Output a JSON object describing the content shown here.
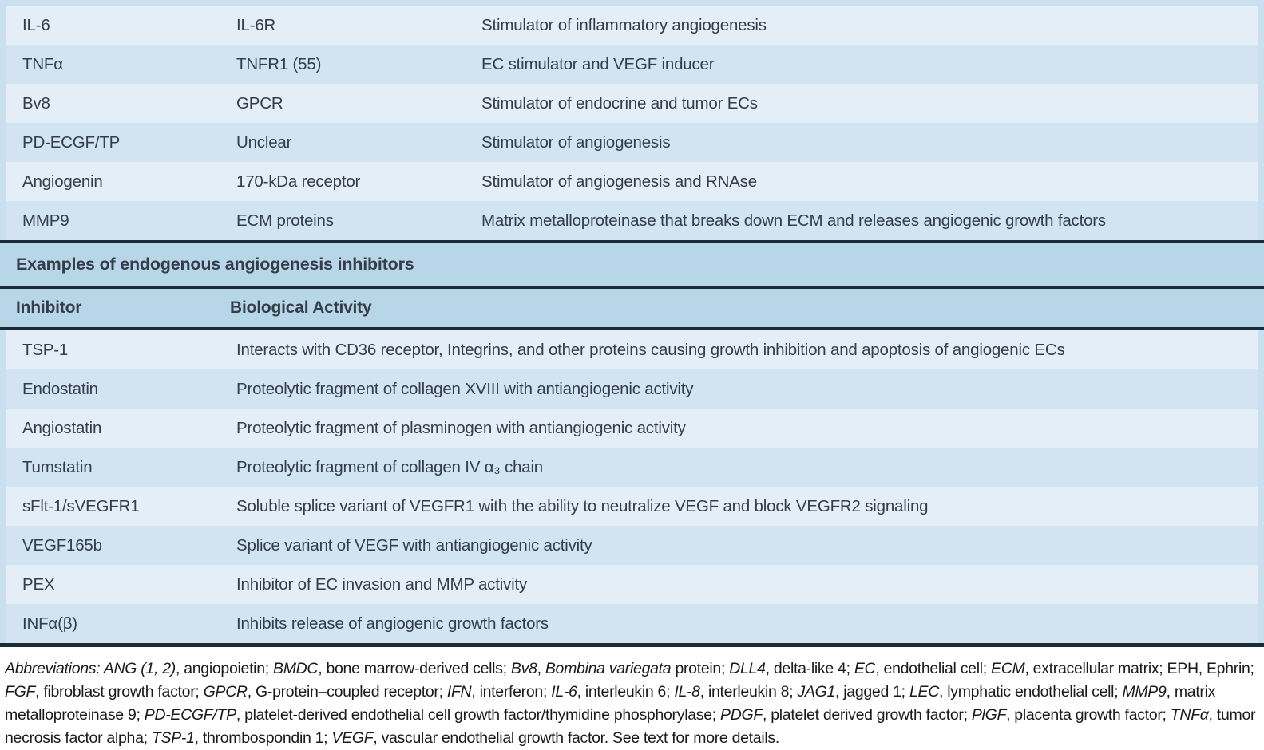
{
  "table": {
    "stimulators": {
      "rows": [
        {
          "factor": "IL-6",
          "receptor": "IL-6R",
          "activity": "Stimulator of inflammatory angiogenesis"
        },
        {
          "factor": "TNFα",
          "receptor": "TNFR1 (55)",
          "activity": "EC stimulator and VEGF inducer"
        },
        {
          "factor": "Bv8",
          "receptor": "GPCR",
          "activity": "Stimulator of endocrine and tumor ECs"
        },
        {
          "factor": "PD-ECGF/TP",
          "receptor": "Unclear",
          "activity": "Stimulator of angiogenesis"
        },
        {
          "factor": "Angiogenin",
          "receptor": "170-kDa receptor",
          "activity": "Stimulator of angiogenesis and RNAse"
        },
        {
          "factor": "MMP9",
          "receptor": "ECM proteins",
          "activity": "Matrix metalloproteinase that breaks down ECM and releases angiogenic growth factors"
        }
      ]
    },
    "section_header": "Examples of endogenous angiogenesis inhibitors",
    "inhibitors": {
      "col_headers": {
        "inhibitor": "Inhibitor",
        "activity": "Biological Activity"
      },
      "rows": [
        {
          "inhibitor": "TSP-1",
          "activity": "Interacts with CD36 receptor, Integrins, and other proteins causing growth inhibition and apoptosis of angiogenic ECs"
        },
        {
          "inhibitor": "Endostatin",
          "activity": "Proteolytic fragment of collagen XVIII with antiangiogenic activity"
        },
        {
          "inhibitor": "Angiostatin",
          "activity": "Proteolytic fragment of plasminogen with antiangiogenic activity"
        },
        {
          "inhibitor": "Tumstatin",
          "activity": "Proteolytic fragment of collagen IV α₃ chain"
        },
        {
          "inhibitor": "sFlt-1/sVEGFR1",
          "activity": "Soluble splice variant of VEGFR1 with the ability to neutralize VEGF and block VEGFR2 signaling"
        },
        {
          "inhibitor": "VEGF165b",
          "activity": "Splice variant of VEGF with antiangiogenic activity"
        },
        {
          "inhibitor": "PEX",
          "activity": "Inhibitor of EC invasion and MMP activity"
        },
        {
          "inhibitor": "INFα(β)",
          "activity": "Inhibits release of angiogenic growth factors"
        }
      ]
    }
  },
  "footnote": {
    "segments": [
      {
        "text": "Abbreviations: ",
        "italic": true
      },
      {
        "text": "ANG (1, 2)",
        "italic": true
      },
      {
        "text": ", angiopoietin; ",
        "italic": false
      },
      {
        "text": "BMDC",
        "italic": true
      },
      {
        "text": ", bone marrow-derived cells; ",
        "italic": false
      },
      {
        "text": "Bv8",
        "italic": true
      },
      {
        "text": ", ",
        "italic": false
      },
      {
        "text": "Bombina variegata",
        "italic": true
      },
      {
        "text": " protein; ",
        "italic": false
      },
      {
        "text": "DLL4",
        "italic": true
      },
      {
        "text": ", delta-like 4; ",
        "italic": false
      },
      {
        "text": "EC",
        "italic": true
      },
      {
        "text": ", endothelial cell; ",
        "italic": false
      },
      {
        "text": "ECM",
        "italic": true
      },
      {
        "text": ", extracellular matrix; EPH, Ephrin; ",
        "italic": false
      },
      {
        "text": "FGF",
        "italic": true
      },
      {
        "text": ", fibroblast growth factor; ",
        "italic": false
      },
      {
        "text": "GPCR",
        "italic": true
      },
      {
        "text": ", G-protein–coupled receptor; ",
        "italic": false
      },
      {
        "text": "IFN",
        "italic": true
      },
      {
        "text": ", interferon; ",
        "italic": false
      },
      {
        "text": "IL-6",
        "italic": true
      },
      {
        "text": ", interleukin 6; ",
        "italic": false
      },
      {
        "text": "IL-8",
        "italic": true
      },
      {
        "text": ", interleukin 8; ",
        "italic": false
      },
      {
        "text": "JAG1",
        "italic": true
      },
      {
        "text": ", jagged 1; ",
        "italic": false
      },
      {
        "text": "LEC",
        "italic": true
      },
      {
        "text": ", lymphatic endothelial cell; ",
        "italic": false
      },
      {
        "text": "MMP9",
        "italic": true
      },
      {
        "text": ", matrix metalloproteinase 9; ",
        "italic": false
      },
      {
        "text": "PD-ECGF/TP",
        "italic": true
      },
      {
        "text": ", platelet-derived endothelial cell growth factor/thymidine phosphorylase; ",
        "italic": false
      },
      {
        "text": "PDGF",
        "italic": true
      },
      {
        "text": ", platelet derived growth factor; ",
        "italic": false
      },
      {
        "text": "PlGF",
        "italic": true
      },
      {
        "text": ", placenta growth factor; ",
        "italic": false
      },
      {
        "text": "TNFα",
        "italic": true
      },
      {
        "text": ", tumor necrosis factor alpha; ",
        "italic": false
      },
      {
        "text": "TSP-1",
        "italic": true
      },
      {
        "text": ", thrombospondin 1; ",
        "italic": false
      },
      {
        "text": "VEGF",
        "italic": true
      },
      {
        "text": ", vascular endothelial growth factor. See text for more details.",
        "italic": false
      }
    ]
  },
  "colors": {
    "row_light": "#e4eef6",
    "row_medium": "#d2e4f1",
    "header_blue": "#b7d7e9",
    "frame": "#cbe0ee",
    "rule": "#1c2b38",
    "table_text": "#343d49",
    "footnote_text": "#1a1a1a"
  }
}
